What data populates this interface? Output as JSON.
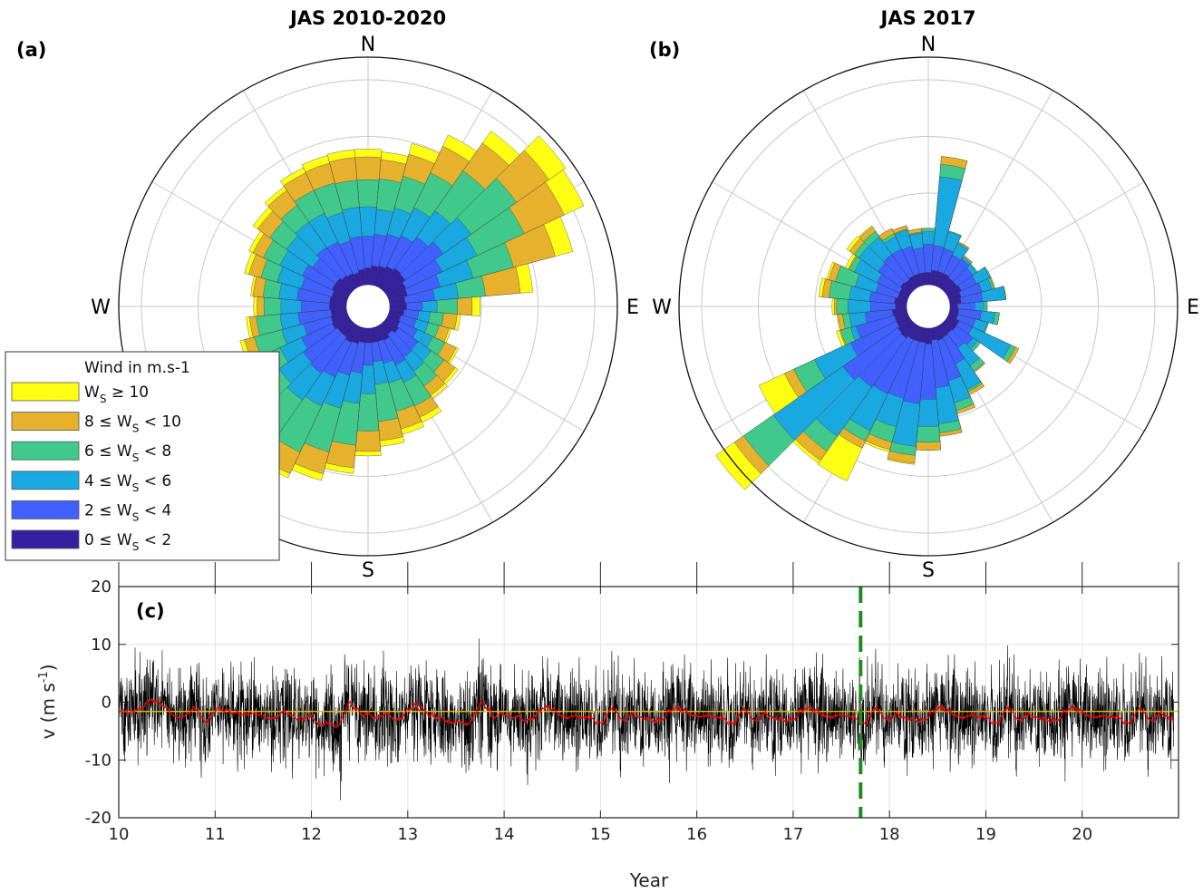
{
  "chart_data": [
    {
      "type": "polar-bar",
      "panel_label": "(a)",
      "title": "JAS 2010-2020",
      "directions": [
        "N",
        "E",
        "S",
        "W"
      ],
      "bin_width_deg": 10,
      "wedge_inner_radius": 2.0,
      "stacked_wind_speed_classes": true,
      "sector_centers_deg": [
        0,
        10,
        20,
        30,
        40,
        50,
        60,
        70,
        80,
        90,
        100,
        110,
        120,
        130,
        140,
        150,
        160,
        170,
        180,
        190,
        200,
        210,
        220,
        230,
        240,
        250,
        260,
        270,
        280,
        290,
        300,
        310,
        320,
        330,
        340,
        350
      ],
      "cumulative_radius_by_class": {
        "0-2": [
          3.4,
          3.6,
          3.7,
          3.9,
          4.1,
          4.0,
          3.7,
          3.6,
          3.3,
          3.4,
          3.2,
          3.0,
          3.1,
          3.3,
          3.0,
          3.3,
          3.2,
          3.2,
          3.2,
          3.2,
          3.4,
          3.5,
          3.3,
          3.3,
          3.5,
          3.4,
          3.3,
          3.4,
          3.4,
          3.3,
          3.5,
          3.5,
          3.3,
          3.2,
          3.1,
          3.3
        ],
        "2-4": [
          6.2,
          6.4,
          6.6,
          6.9,
          7.5,
          8.1,
          7.2,
          6.6,
          5.9,
          4.8,
          4.5,
          4.4,
          4.8,
          5.4,
          5.5,
          5.7,
          5.2,
          4.9,
          5.2,
          5.9,
          6.3,
          6.9,
          7.2,
          7.0,
          6.5,
          5.9,
          6.2,
          5.9,
          6.3,
          6.1,
          6.4,
          6.0,
          6.4,
          6.3,
          6.0,
          6.2
        ],
        "4-6": [
          8.8,
          8.6,
          9.0,
          9.6,
          10.3,
          11.1,
          10.6,
          9.6,
          8.0,
          6.1,
          5.5,
          5.5,
          6.3,
          6.8,
          7.0,
          7.4,
          7.0,
          6.9,
          7.7,
          8.6,
          9.3,
          9.7,
          10.1,
          9.6,
          8.6,
          7.9,
          7.8,
          7.7,
          7.9,
          8.3,
          8.6,
          8.8,
          9.1,
          9.1,
          8.6,
          8.8
        ],
        "6-8": [
          11.2,
          11.3,
          11.9,
          13.0,
          14.6,
          16.0,
          15.2,
          13.3,
          10.4,
          7.9,
          6.7,
          6.5,
          7.5,
          8.2,
          8.6,
          9.7,
          9.6,
          10.2,
          11.0,
          12.3,
          13.3,
          14.2,
          14.6,
          13.6,
          11.6,
          10.4,
          9.9,
          9.2,
          9.3,
          9.8,
          10.2,
          10.6,
          10.9,
          11.3,
          11.3,
          11.2
        ],
        "8-10": [
          13.2,
          13.0,
          13.9,
          15.6,
          17.6,
          19.5,
          19.1,
          17.1,
          13.5,
          9.2,
          7.9,
          7.4,
          8.6,
          9.4,
          9.6,
          10.8,
          11.2,
          11.9,
          12.8,
          14.3,
          15.3,
          16.3,
          16.4,
          15.0,
          12.6,
          11.3,
          10.5,
          9.8,
          10.2,
          10.9,
          11.2,
          11.9,
          12.5,
          13.0,
          13.1,
          13.2
        ],
        "10+": [
          13.9,
          13.7,
          14.9,
          16.7,
          18.9,
          21.3,
          21.0,
          18.7,
          14.6,
          9.9,
          8.2,
          7.6,
          8.8,
          9.7,
          9.9,
          11.3,
          11.7,
          12.4,
          13.2,
          14.8,
          15.9,
          16.7,
          17.0,
          15.6,
          12.9,
          11.7,
          10.8,
          10.1,
          10.4,
          11.3,
          11.6,
          12.4,
          12.9,
          13.5,
          13.8,
          13.9
        ]
      }
    },
    {
      "type": "polar-bar",
      "panel_label": "(b)",
      "title": "JAS 2017",
      "directions": [
        "N",
        "E",
        "S",
        "W"
      ],
      "bin_width_deg": 10,
      "wedge_inner_radius": 2.0,
      "stacked_wind_speed_classes": true,
      "sector_centers_deg": [
        0,
        10,
        20,
        30,
        40,
        50,
        60,
        70,
        80,
        90,
        100,
        110,
        120,
        130,
        140,
        150,
        160,
        170,
        180,
        190,
        200,
        210,
        220,
        230,
        240,
        250,
        260,
        270,
        280,
        290,
        300,
        310,
        320,
        330,
        340,
        350
      ],
      "cumulative_radius_by_class": {
        "0-2": [
          3.0,
          3.2,
          3.2,
          3.2,
          3.1,
          3.1,
          3.2,
          3.0,
          2.9,
          2.6,
          2.7,
          2.7,
          3.0,
          3.0,
          2.9,
          3.0,
          3.1,
          3.0,
          3.3,
          3.2,
          3.2,
          3.2,
          3.4,
          3.3,
          3.1,
          3.1,
          3.2,
          2.9,
          3.0,
          2.8,
          2.8,
          3.0,
          2.9,
          3.0,
          3.0,
          3.0
        ],
        "2-4": [
          5.5,
          5.4,
          5.3,
          5.0,
          5.1,
          4.8,
          4.7,
          4.9,
          4.8,
          4.1,
          4.7,
          4.3,
          4.3,
          4.8,
          4.5,
          5.6,
          6.8,
          7.2,
          8.2,
          8.6,
          8.4,
          8.5,
          8.7,
          9.2,
          7.6,
          6.6,
          5.6,
          5.1,
          5.2,
          4.8,
          5.0,
          5.4,
          5.6,
          5.6,
          5.5,
          5.2
        ],
        "4-6": [
          6.6,
          11.5,
          6.8,
          6.1,
          5.3,
          5.2,
          6.0,
          5.8,
          6.8,
          4.9,
          5.9,
          5.4,
          8.0,
          5.3,
          6.4,
          8.1,
          8.8,
          10.4,
          10.6,
          12.4,
          11.0,
          12.1,
          14.0,
          16.7,
          11.1,
          7.1,
          7.0,
          7.1,
          7.0,
          6.7,
          7.2,
          7.5,
          7.5,
          6.8,
          7.0,
          6.5
        ],
        "6-8": [
          6.9,
          12.6,
          6.9,
          6.2,
          5.4,
          5.3,
          6.1,
          6.0,
          6.9,
          5.2,
          6.3,
          5.5,
          8.5,
          5.6,
          7.0,
          8.3,
          9.5,
          11.2,
          12.0,
          13.2,
          12.4,
          13.1,
          15.6,
          19.9,
          13.1,
          8.0,
          7.6,
          8.1,
          8.8,
          8.5,
          7.7,
          8.0,
          8.1,
          7.1,
          7.1,
          6.6
        ],
        "8-10": [
          6.9,
          13.3,
          6.9,
          6.3,
          5.5,
          5.3,
          6.1,
          6.1,
          6.9,
          5.2,
          6.3,
          5.5,
          8.8,
          5.6,
          7.1,
          8.6,
          9.8,
          11.5,
          12.7,
          13.9,
          13.1,
          13.8,
          16.6,
          20.9,
          14.0,
          8.1,
          8.0,
          8.3,
          9.4,
          9.1,
          7.8,
          8.5,
          8.6,
          7.6,
          7.4,
          6.9
        ],
        "10+": [
          6.9,
          13.3,
          6.9,
          6.3,
          5.5,
          5.3,
          6.1,
          6.1,
          6.9,
          5.2,
          6.3,
          5.5,
          8.8,
          5.6,
          7.1,
          8.6,
          9.8,
          11.5,
          12.7,
          14.0,
          13.3,
          17.0,
          16.9,
          22.9,
          16.5,
          8.4,
          8.1,
          8.5,
          9.7,
          9.3,
          8.1,
          8.8,
          8.7,
          7.6,
          7.4,
          6.9
        ]
      }
    },
    {
      "type": "line",
      "panel_label": "(c)",
      "xlabel": "Year",
      "ylabel_main": "v (m s",
      "ylabel_sup": "-1",
      "ylabel_close": ")",
      "xlim": [
        10,
        21
      ],
      "ylim": [
        -20,
        20
      ],
      "x_ticks": [
        10,
        11,
        12,
        13,
        14,
        15,
        16,
        17,
        18,
        19,
        20
      ],
      "y_ticks": [
        -20,
        -10,
        0,
        10,
        20
      ],
      "grid": true,
      "series": [
        {
          "color": "#000000",
          "style": "hourly",
          "approx_envelope": [
            -17,
            18
          ]
        },
        {
          "color": "#ff0000",
          "style": "smoothed",
          "approx_range": [
            -7,
            4
          ]
        },
        {
          "color": "#e8c000",
          "style": "mean",
          "y": -1.6
        }
      ],
      "vline": {
        "x": 17.7,
        "color": "#1e8c1e",
        "style": "dashed"
      }
    }
  ],
  "legend": {
    "title": "Wind in m.s-1",
    "entries": [
      {
        "key": "10+",
        "label": "W",
        "sub": "S",
        "tail": " ≥ 10",
        "head": "",
        "color": "#ffff14"
      },
      {
        "key": "8-10",
        "label": "W",
        "sub": "S",
        "tail": " < 10",
        "head": "8 ≤ ",
        "color": "#e6b22e"
      },
      {
        "key": "6-8",
        "label": "W",
        "sub": "S",
        "tail": " < 8",
        "head": "6 ≤ ",
        "color": "#40c98a"
      },
      {
        "key": "4-6",
        "label": "W",
        "sub": "S",
        "tail": " < 6",
        "head": "4 ≤ ",
        "color": "#1aa8e0"
      },
      {
        "key": "2-4",
        "label": "W",
        "sub": "S",
        "tail": " < 4",
        "head": "2 ≤ ",
        "color": "#4060ff"
      },
      {
        "key": "0-2",
        "label": "W",
        "sub": "S",
        "tail": " < 2",
        "head": "0 ≤ ",
        "color": "#3520a0"
      }
    ]
  }
}
